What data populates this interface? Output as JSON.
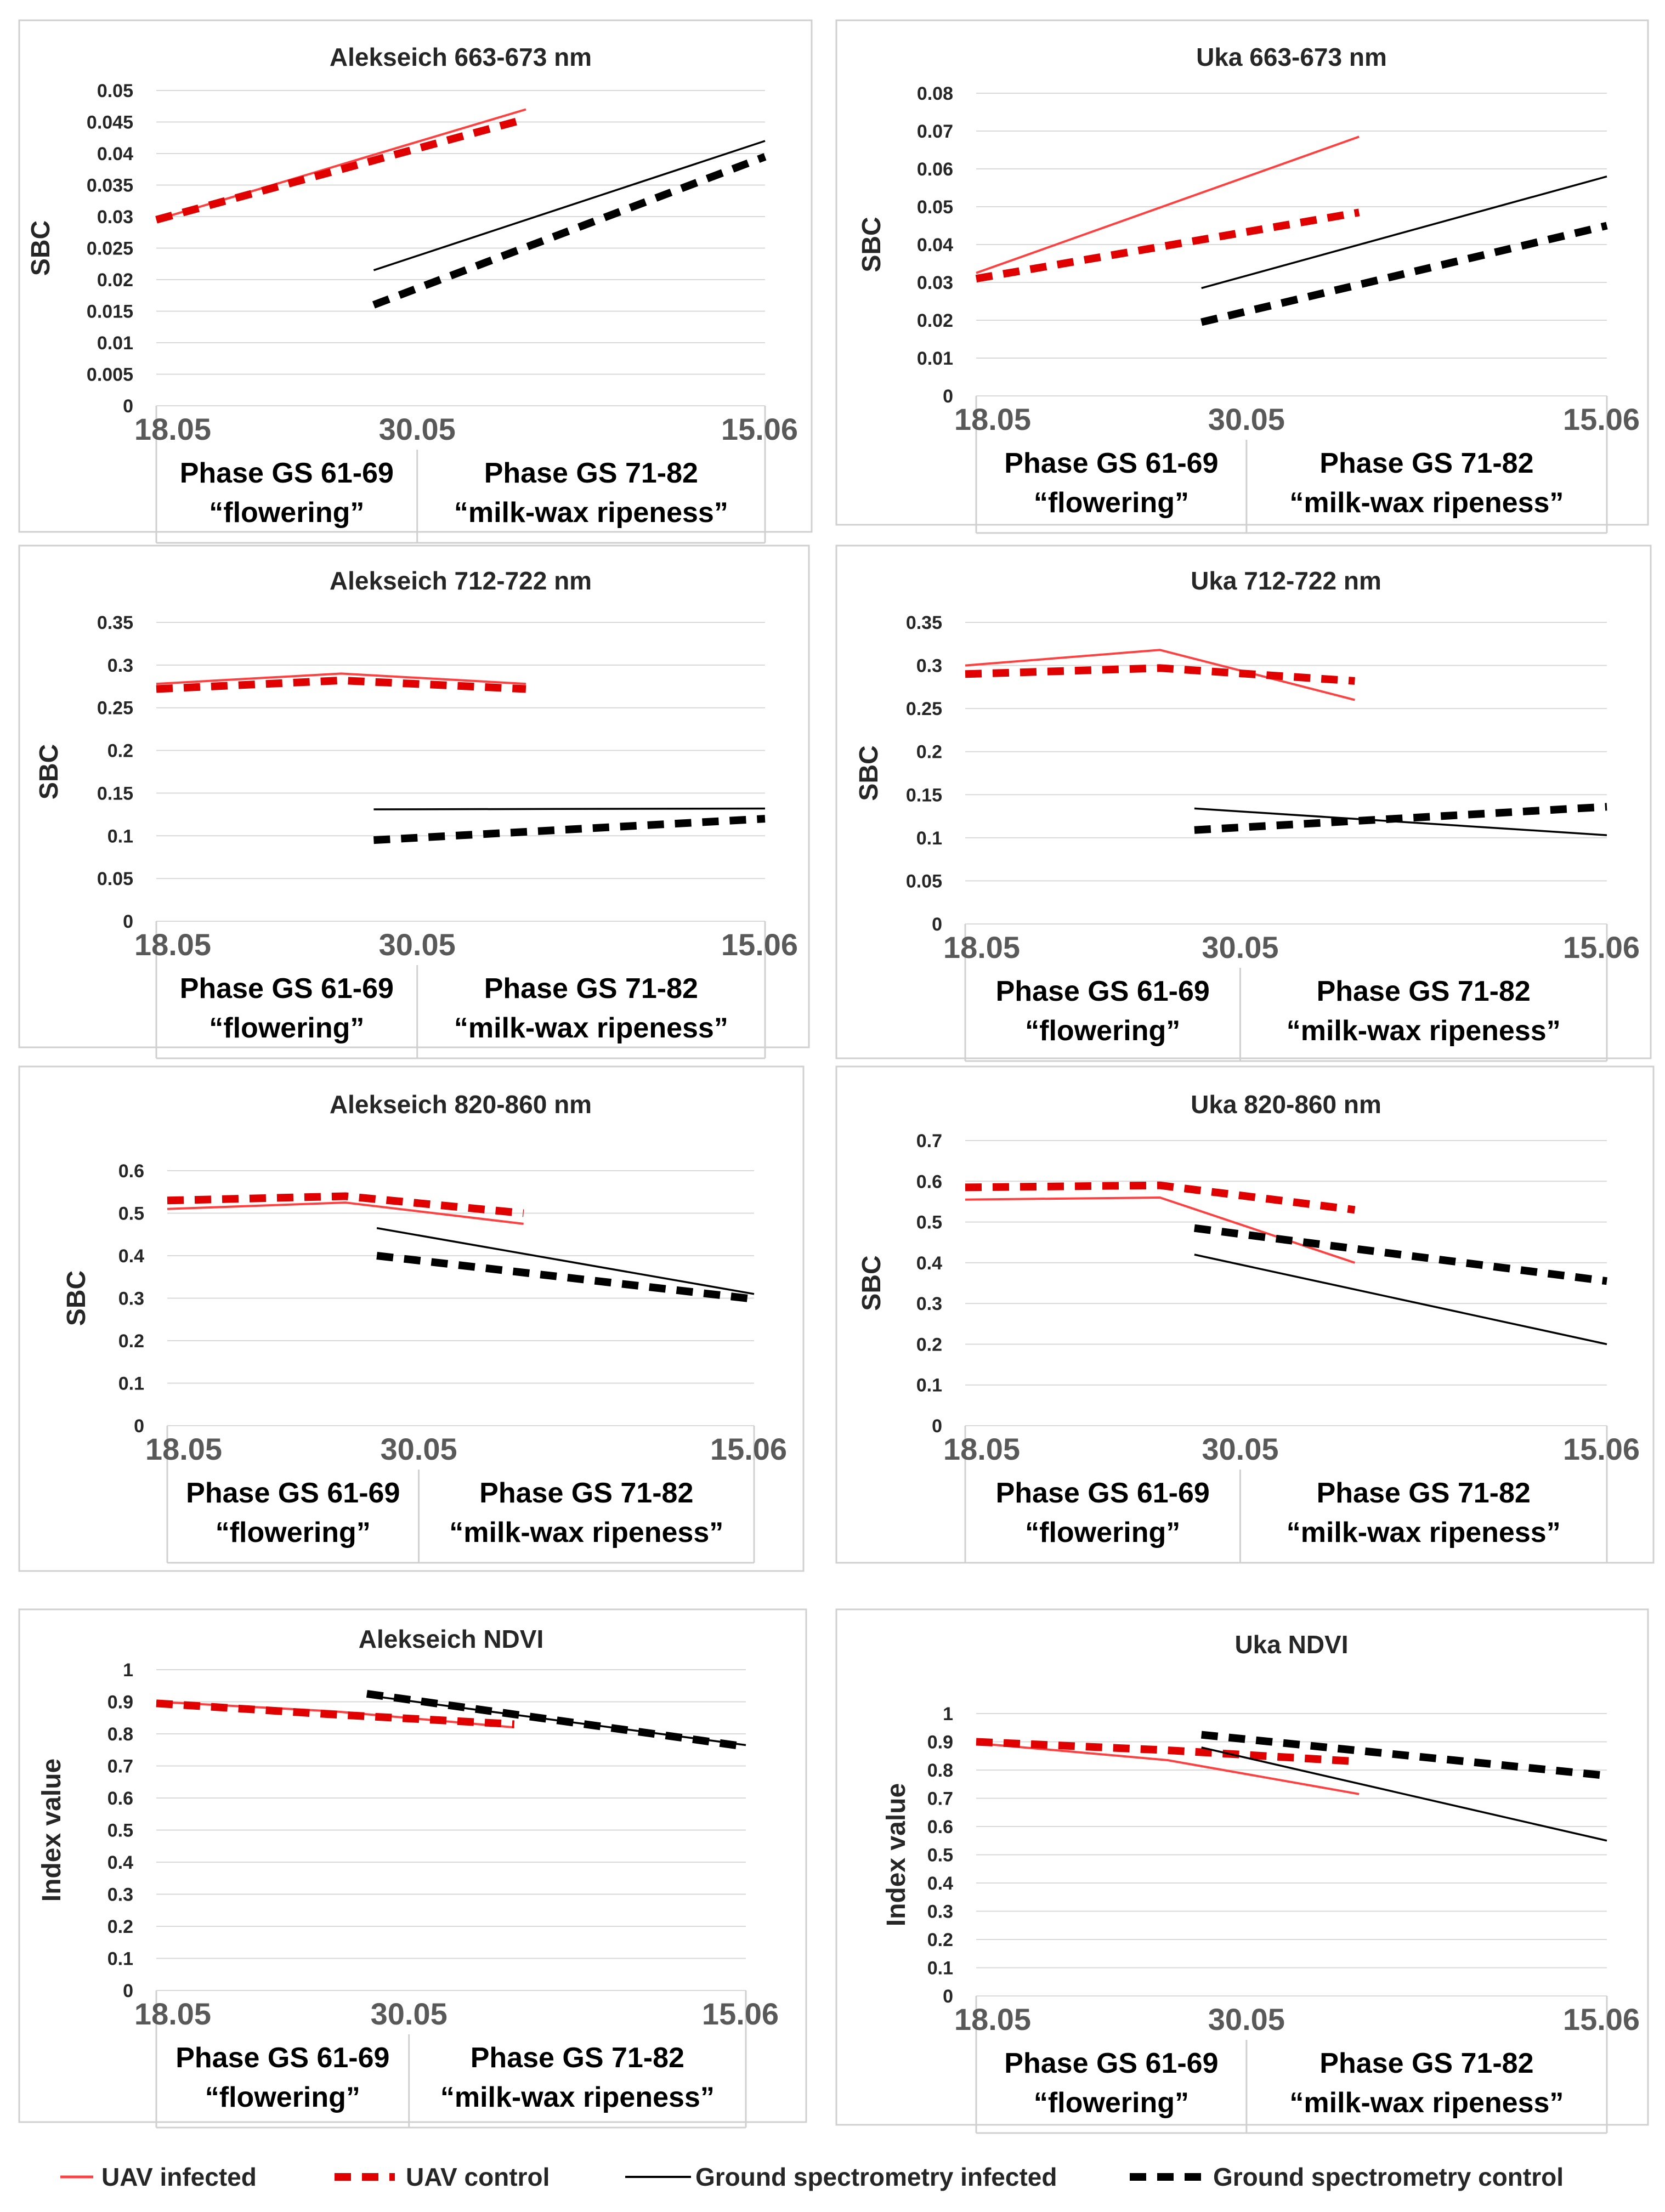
{
  "series_styles": {
    "uav_infected": {
      "color": "#ff4040",
      "dashed": false
    },
    "uav_control": {
      "color": "#e00000",
      "dashed": true
    },
    "ground_infected": {
      "color": "#000000",
      "dashed": false
    },
    "ground_control": {
      "color": "#000000",
      "dashed": true
    }
  },
  "legend": {
    "uav_infected": "UAV infected",
    "uav_control": "UAV control",
    "ground_infected": "Ground spectrometry infected",
    "ground_control": "Ground spectrometry control"
  },
  "chart_data": [
    {
      "type": "line",
      "title": "Alekseich 663-673 nm",
      "ylabel": "SBC",
      "ylim": [
        0,
        0.05
      ],
      "yticks": [
        "0",
        "0.005",
        "0.01",
        "0.015",
        "0.02",
        "0.025",
        "0.03",
        "0.035",
        "0.04",
        "0.045",
        "0.05"
      ],
      "x_labels": [
        "18.05",
        "30.05",
        "15.06"
      ],
      "phases": [
        {
          "name": "Phase GS 61-69",
          "sub": "“flowering”"
        },
        {
          "name": "Phase GS 71-82",
          "sub": "“milk-wax ripeness”"
        }
      ],
      "series": [
        {
          "key": "uav_infected",
          "name": "UAV infected",
          "x": [
            18,
            35
          ],
          "y": [
            0.0295,
            0.047
          ]
        },
        {
          "key": "uav_control",
          "name": "UAV control",
          "x": [
            18,
            35
          ],
          "y": [
            0.0295,
            0.0455
          ]
        },
        {
          "key": "ground_infected",
          "name": "Ground spectrometry infected",
          "x": [
            28,
            46
          ],
          "y": [
            0.0215,
            0.042
          ]
        },
        {
          "key": "ground_control",
          "name": "Ground spectrometry control",
          "x": [
            28,
            46
          ],
          "y": [
            0.016,
            0.0395
          ]
        }
      ]
    },
    {
      "type": "line",
      "title": "Uka 663-673 nm",
      "ylabel": "SBC",
      "ylim": [
        0,
        0.08
      ],
      "yticks": [
        "0",
        "0.01",
        "0.02",
        "0.03",
        "0.04",
        "0.05",
        "0.06",
        "0.07",
        "0.08"
      ],
      "x_labels": [
        "18.05",
        "30.05",
        "15.06"
      ],
      "phases": [
        {
          "name": "Phase GS 61-69",
          "sub": "“flowering”"
        },
        {
          "name": "Phase GS 71-82",
          "sub": "“milk-wax ripeness”"
        }
      ],
      "series": [
        {
          "key": "uav_infected",
          "name": "UAV infected",
          "x": [
            18,
            35
          ],
          "y": [
            0.0325,
            0.0685
          ]
        },
        {
          "key": "uav_control",
          "name": "UAV control",
          "x": [
            18,
            35
          ],
          "y": [
            0.031,
            0.0485
          ]
        },
        {
          "key": "ground_infected",
          "name": "Ground spectrometry infected",
          "x": [
            28,
            46
          ],
          "y": [
            0.0285,
            0.058
          ]
        },
        {
          "key": "ground_control",
          "name": "Ground spectrometry control",
          "x": [
            28,
            46
          ],
          "y": [
            0.0195,
            0.045
          ]
        }
      ]
    },
    {
      "type": "line",
      "title": "Alekseich 712-722 nm",
      "ylabel": "SBC",
      "ylim": [
        0,
        0.35
      ],
      "yticks": [
        "0",
        "0.05",
        "0.1",
        "0.15",
        "0.2",
        "0.25",
        "0.3",
        "0.35"
      ],
      "x_labels": [
        "18.05",
        "30.05",
        "15.06"
      ],
      "phases": [
        {
          "name": "Phase GS 61-69",
          "sub": "“flowering”"
        },
        {
          "name": "Phase GS 71-82",
          "sub": "“milk-wax ripeness”"
        }
      ],
      "series": [
        {
          "key": "uav_infected",
          "name": "UAV infected",
          "x": [
            18,
            26.5,
            35
          ],
          "y": [
            0.278,
            0.29,
            0.278
          ]
        },
        {
          "key": "uav_control",
          "name": "UAV control",
          "x": [
            18,
            26.5,
            35
          ],
          "y": [
            0.272,
            0.282,
            0.272
          ]
        },
        {
          "key": "ground_infected",
          "name": "Ground spectrometry infected",
          "x": [
            28,
            46
          ],
          "y": [
            0.131,
            0.132
          ]
        },
        {
          "key": "ground_control",
          "name": "Ground spectrometry control",
          "x": [
            28,
            46
          ],
          "y": [
            0.095,
            0.12
          ]
        }
      ]
    },
    {
      "type": "line",
      "title": "Uka 712-722 nm",
      "ylabel": "SBC",
      "ylim": [
        0,
        0.35
      ],
      "yticks": [
        "0",
        "0.05",
        "0.1",
        "0.15",
        "0.2",
        "0.25",
        "0.3",
        "0.35"
      ],
      "x_labels": [
        "18.05",
        "30.05",
        "15.06"
      ],
      "phases": [
        {
          "name": "Phase GS 61-69",
          "sub": "“flowering”"
        },
        {
          "name": "Phase GS 71-82",
          "sub": "“milk-wax ripeness”"
        }
      ],
      "series": [
        {
          "key": "uav_infected",
          "name": "UAV infected",
          "x": [
            18,
            26.5,
            35
          ],
          "y": [
            0.3,
            0.318,
            0.26
          ]
        },
        {
          "key": "uav_control",
          "name": "UAV control",
          "x": [
            18,
            26.5,
            35
          ],
          "y": [
            0.29,
            0.297,
            0.282
          ]
        },
        {
          "key": "ground_infected",
          "name": "Ground spectrometry infected",
          "x": [
            28,
            46
          ],
          "y": [
            0.134,
            0.103
          ]
        },
        {
          "key": "ground_control",
          "name": "Ground spectrometry control",
          "x": [
            28,
            46
          ],
          "y": [
            0.109,
            0.136
          ]
        }
      ]
    },
    {
      "type": "line",
      "title": "Alekseich 820-860 nm",
      "ylabel": "SBC",
      "ylim": [
        0,
        0.6
      ],
      "yticks": [
        "0",
        "0.1",
        "0.2",
        "0.3",
        "0.4",
        "0.5",
        "0.6"
      ],
      "x_labels": [
        "18.05",
        "30.05",
        "15.06"
      ],
      "phases": [
        {
          "name": "Phase GS 61-69",
          "sub": "“flowering”"
        },
        {
          "name": "Phase GS 71-82",
          "sub": "“milk-wax ripeness”"
        }
      ],
      "series": [
        {
          "key": "uav_infected",
          "name": "UAV infected",
          "x": [
            18,
            26.5,
            35
          ],
          "y": [
            0.51,
            0.525,
            0.475
          ]
        },
        {
          "key": "uav_control",
          "name": "UAV control",
          "x": [
            18,
            26.5,
            35
          ],
          "y": [
            0.53,
            0.54,
            0.5
          ]
        },
        {
          "key": "ground_infected",
          "name": "Ground spectrometry infected",
          "x": [
            28,
            46
          ],
          "y": [
            0.465,
            0.31
          ]
        },
        {
          "key": "ground_control",
          "name": "Ground spectrometry control",
          "x": [
            28,
            46
          ],
          "y": [
            0.4,
            0.298
          ]
        }
      ]
    },
    {
      "type": "line",
      "title": "Uka 820-860 nm",
      "ylabel": "SBC",
      "ylim": [
        0,
        0.7
      ],
      "yticks": [
        "0",
        "0.1",
        "0.2",
        "0.3",
        "0.4",
        "0.5",
        "0.6",
        "0.7"
      ],
      "x_labels": [
        "18.05",
        "30.05",
        "15.06"
      ],
      "phases": [
        {
          "name": "Phase GS 61-69",
          "sub": "“flowering”"
        },
        {
          "name": "Phase GS 71-82",
          "sub": "“milk-wax ripeness”"
        }
      ],
      "series": [
        {
          "key": "uav_infected",
          "name": "UAV infected",
          "x": [
            18,
            26.5,
            35
          ],
          "y": [
            0.555,
            0.56,
            0.4
          ]
        },
        {
          "key": "uav_control",
          "name": "UAV control",
          "x": [
            18,
            26.5,
            35
          ],
          "y": [
            0.585,
            0.59,
            0.53
          ]
        },
        {
          "key": "ground_infected",
          "name": "Ground spectrometry infected",
          "x": [
            28,
            46
          ],
          "y": [
            0.42,
            0.2
          ]
        },
        {
          "key": "ground_control",
          "name": "Ground spectrometry control",
          "x": [
            28,
            46
          ],
          "y": [
            0.485,
            0.355
          ]
        }
      ]
    },
    {
      "type": "line",
      "title": "Alekseich NDVI",
      "ylabel": "Index value",
      "ylim": [
        0,
        1
      ],
      "yticks": [
        "0",
        "0.1",
        "0.2",
        "0.3",
        "0.4",
        "0.5",
        "0.6",
        "0.7",
        "0.8",
        "0.9",
        "1"
      ],
      "x_labels": [
        "18.05",
        "30.05",
        "15.06"
      ],
      "phases": [
        {
          "name": "Phase GS 61-69",
          "sub": "“flowering”"
        },
        {
          "name": "Phase GS 71-82",
          "sub": "“milk-wax ripeness”"
        }
      ],
      "series": [
        {
          "key": "uav_infected",
          "name": "UAV infected",
          "x": [
            18,
            26.5,
            35
          ],
          "y": [
            0.9,
            0.87,
            0.82
          ]
        },
        {
          "key": "uav_control",
          "name": "UAV control",
          "x": [
            18,
            26.5,
            35
          ],
          "y": [
            0.895,
            0.86,
            0.83
          ]
        },
        {
          "key": "ground_infected",
          "name": "Ground spectrometry infected",
          "x": [
            28,
            46
          ],
          "y": [
            0.92,
            0.765
          ]
        },
        {
          "key": "ground_control",
          "name": "Ground spectrometry control",
          "x": [
            28,
            46
          ],
          "y": [
            0.925,
            0.76
          ]
        }
      ]
    },
    {
      "type": "line",
      "title": "Uka NDVI",
      "ylabel": "Index value",
      "ylim": [
        0,
        1
      ],
      "yticks": [
        "0",
        "0.1",
        "0.2",
        "0.3",
        "0.4",
        "0.5",
        "0.6",
        "0.7",
        "0.8",
        "0.9",
        "1"
      ],
      "x_labels": [
        "18.05",
        "30.05",
        "15.06"
      ],
      "phases": [
        {
          "name": "Phase GS 61-69",
          "sub": "“flowering”"
        },
        {
          "name": "Phase GS 71-82",
          "sub": "“milk-wax ripeness”"
        }
      ],
      "series": [
        {
          "key": "uav_infected",
          "name": "UAV infected",
          "x": [
            18,
            26.5,
            35
          ],
          "y": [
            0.895,
            0.835,
            0.715
          ]
        },
        {
          "key": "uav_control",
          "name": "UAV control",
          "x": [
            18,
            26.5,
            35
          ],
          "y": [
            0.9,
            0.87,
            0.83
          ]
        },
        {
          "key": "ground_infected",
          "name": "Ground spectrometry infected",
          "x": [
            28,
            46
          ],
          "y": [
            0.88,
            0.55
          ]
        },
        {
          "key": "ground_control",
          "name": "Ground spectrometry control",
          "x": [
            28,
            46
          ],
          "y": [
            0.925,
            0.78
          ]
        }
      ]
    }
  ]
}
